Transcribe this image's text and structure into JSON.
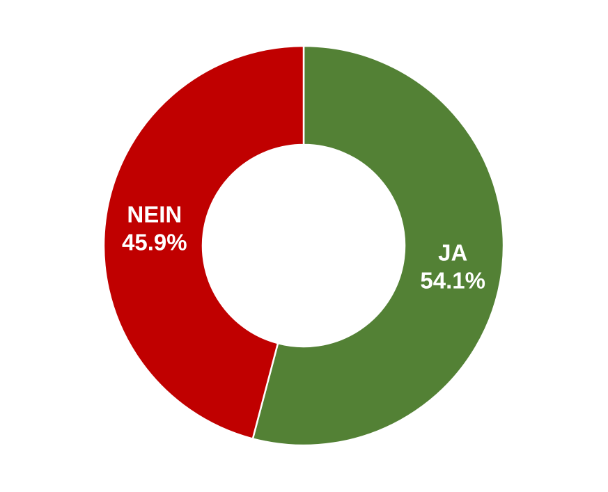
{
  "chart_data": {
    "type": "pie",
    "variant": "donut",
    "title": "",
    "legend": "none",
    "slices": [
      {
        "label": "JA",
        "value": 54.1,
        "value_label": "54.1%",
        "color": "#538135"
      },
      {
        "label": "NEIN",
        "value": 45.9,
        "value_label": "45.9%",
        "color": "#C00000"
      }
    ]
  }
}
